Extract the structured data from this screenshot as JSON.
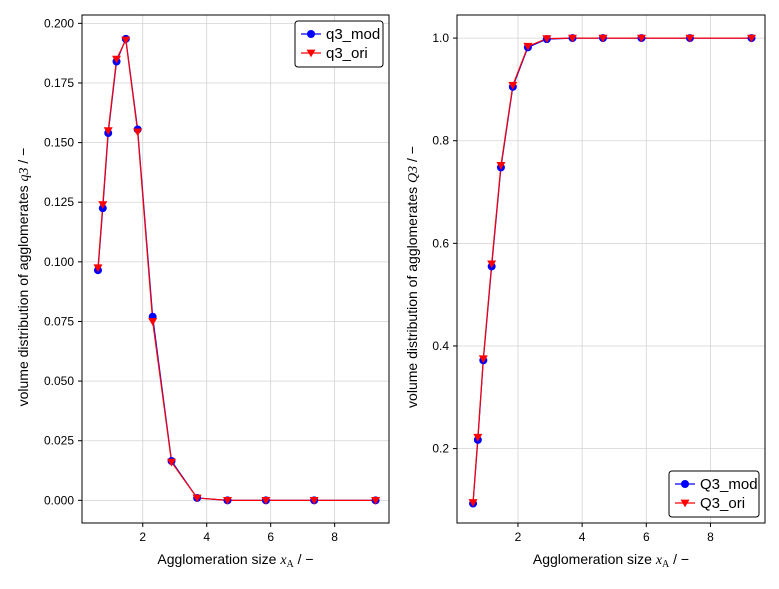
{
  "chart_data": [
    {
      "type": "line",
      "xlabel": "Agglomeration size",
      "xlabel_symbol": "x",
      "xlabel_subscript": "A",
      "xlabel_unit": " / −",
      "ylabel": "volume distribution of agglomerates",
      "ylabel_symbol": "q3",
      "ylabel_unit": " / −",
      "xlim": [
        0.1,
        9.7
      ],
      "ylim": [
        -0.0095,
        0.2035
      ],
      "xticks": [
        2,
        4,
        6,
        8
      ],
      "xtick_labels": [
        "2",
        "4",
        "6",
        "8"
      ],
      "yticks": [
        0.0,
        0.025,
        0.05,
        0.075,
        0.1,
        0.125,
        0.15,
        0.175,
        0.2
      ],
      "ytick_labels": [
        "0.000",
        "0.025",
        "0.050",
        "0.075",
        "0.100",
        "0.125",
        "0.150",
        "0.175",
        "0.200"
      ],
      "grid": true,
      "legend_position": "top-right",
      "x": [
        0.6,
        0.75,
        0.92,
        1.18,
        1.47,
        1.84,
        2.31,
        2.9,
        3.7,
        4.65,
        5.85,
        7.36,
        9.28
      ],
      "series": [
        {
          "name": "q3_mod",
          "color": "#0000ff",
          "marker": "circle",
          "line_color": "#0000ff",
          "values": [
            0.0965,
            0.1225,
            0.154,
            0.184,
            0.1935,
            0.1555,
            0.077,
            0.0165,
            0.001,
            0.0,
            0.0,
            0.0,
            0.0
          ]
        },
        {
          "name": "q3_ori",
          "color": "#ff0000",
          "marker": "triangle-down",
          "line_color": "#ff0000",
          "values": [
            0.0975,
            0.124,
            0.155,
            0.185,
            0.193,
            0.1545,
            0.075,
            0.016,
            0.001,
            0.0,
            0.0,
            0.0,
            0.0
          ]
        }
      ]
    },
    {
      "type": "line",
      "xlabel": "Agglomeration size",
      "xlabel_symbol": "x",
      "xlabel_subscript": "A",
      "xlabel_unit": " / −",
      "ylabel": "volume distribution of agglomerates",
      "ylabel_symbol": "Q3",
      "ylabel_unit": " / −",
      "xlim": [
        0.1,
        9.7
      ],
      "ylim": [
        0.055,
        1.045
      ],
      "xticks": [
        2,
        4,
        6,
        8
      ],
      "xtick_labels": [
        "2",
        "4",
        "6",
        "8"
      ],
      "yticks": [
        0.2,
        0.4,
        0.6,
        0.8,
        1.0
      ],
      "ytick_labels": [
        "0.2",
        "0.4",
        "0.6",
        "0.8",
        "1.0"
      ],
      "grid": true,
      "legend_position": "bottom-right",
      "x": [
        0.6,
        0.75,
        0.92,
        1.18,
        1.47,
        1.84,
        2.31,
        2.9,
        3.7,
        4.65,
        5.85,
        7.36,
        9.28
      ],
      "series": [
        {
          "name": "Q3_mod",
          "color": "#0000ff",
          "marker": "circle",
          "line_color": "#0000ff",
          "values": [
            0.093,
            0.217,
            0.372,
            0.555,
            0.748,
            0.905,
            0.982,
            0.998,
            1.0,
            1.0,
            1.0,
            1.0,
            1.0
          ]
        },
        {
          "name": "Q3_ori",
          "color": "#ff0000",
          "marker": "triangle-down",
          "line_color": "#ff0000",
          "values": [
            0.095,
            0.222,
            0.375,
            0.56,
            0.752,
            0.908,
            0.984,
            0.999,
            1.0,
            1.0,
            1.0,
            1.0,
            1.0
          ]
        }
      ]
    }
  ]
}
